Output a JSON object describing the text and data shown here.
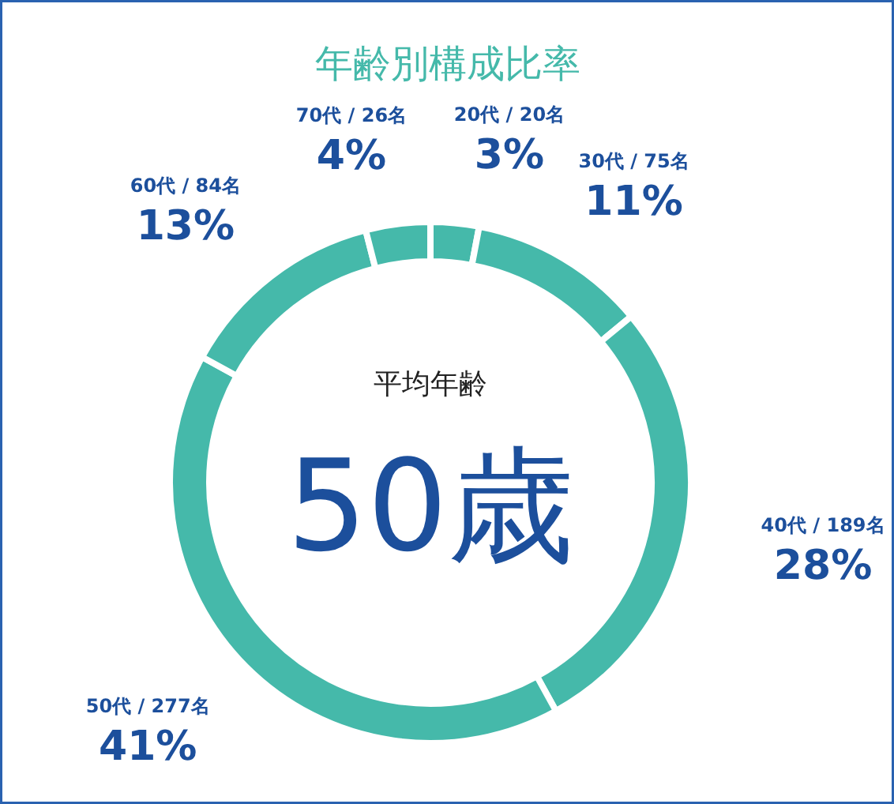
{
  "chart_data": {
    "type": "donut",
    "title": "年齢別構成比率",
    "categories": [
      "20代 / 20名",
      "30代 / 75名",
      "40代 / 189名",
      "50代 / 277名",
      "60代 / 84名",
      "70代 / 26名"
    ],
    "values": [
      3,
      11,
      28,
      41,
      13,
      4
    ],
    "colors": [
      "#45b9aa",
      "#45b9aa",
      "#45b9aa",
      "#45b9aa",
      "#45b9aa",
      "#45b9aa"
    ],
    "value_labels": [
      "3%",
      "11%",
      "28%",
      "41%",
      "13%",
      "4%"
    ],
    "annotations": [
      "平均年齢",
      "50歳"
    ]
  }
}
